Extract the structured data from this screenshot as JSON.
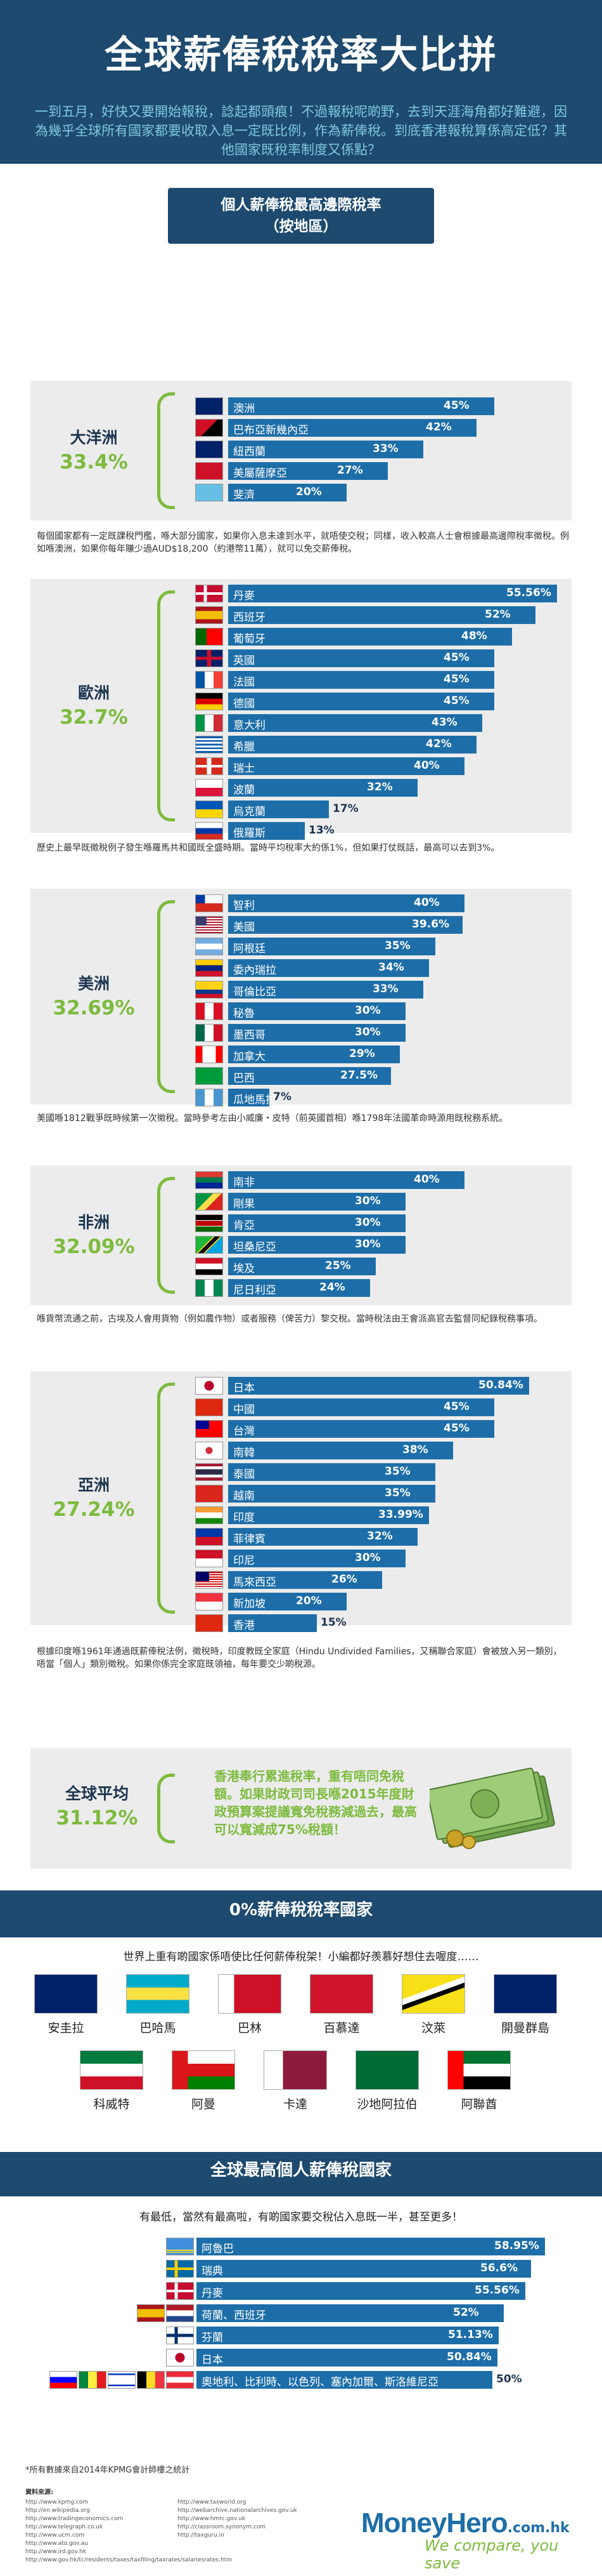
{
  "header": {
    "title": "全球薪俸稅稅率大比拼",
    "intro": "一到五月，好快又要開始報稅，諗起都頭痕！不過報稅呢啲野，去到天涯海角都好難避，因為幾乎全球所有國家都要收取入息一定既比例，作為薪俸稅。到底香港報稅算係高定低？其他國家既稅率制度又係點？"
  },
  "chart_section": {
    "title_line1": "個人薪俸稅最高邊際稅率",
    "title_line2": "（按地區）"
  },
  "colors": {
    "navy": "#1d4a6e",
    "bar": "#1d6ea8",
    "accent_green": "#7dbb3e",
    "panel": "#ececec"
  },
  "regions": [
    {
      "name": "大洋洲",
      "avg": "33.4%",
      "note": "每個國家都有一定既課稅門檻，喺大部分國家，如果你入息未達到水平，就唔使交稅；同樣，收入較高人士會根據最高邊際稅率徵稅。例如喺澳洲，如果你每年賺少過AUD$18,200（約港幣11萬），就可以免交薪俸稅。",
      "countries": [
        {
          "name": "澳洲",
          "rate": 45,
          "label": "45%",
          "flag": "australia"
        },
        {
          "name": "巴布亞新幾內亞",
          "rate": 42,
          "label": "42%",
          "flag": "png"
        },
        {
          "name": "紐西蘭",
          "rate": 33,
          "label": "33%",
          "flag": "nz"
        },
        {
          "name": "美屬薩摩亞",
          "rate": 27,
          "label": "27%",
          "flag": "samoa"
        },
        {
          "name": "斐濟",
          "rate": 20,
          "label": "20%",
          "flag": "fiji"
        }
      ]
    },
    {
      "name": "歐洲",
      "avg": "32.7%",
      "note": "歷史上最早既徵稅例子發生喺羅馬共和國既全盛時期。當時平均稅率大約係1%，但如果打仗既話，最高可以去到3%。",
      "countries": [
        {
          "name": "丹麥",
          "rate": 55.56,
          "label": "55.56%",
          "flag": "denmark"
        },
        {
          "name": "西班牙",
          "rate": 52,
          "label": "52%",
          "flag": "spain"
        },
        {
          "name": "葡萄牙",
          "rate": 48,
          "label": "48%",
          "flag": "portugal"
        },
        {
          "name": "英國",
          "rate": 45,
          "label": "45%",
          "flag": "uk"
        },
        {
          "name": "法國",
          "rate": 45,
          "label": "45%",
          "flag": "france"
        },
        {
          "name": "德國",
          "rate": 45,
          "label": "45%",
          "flag": "germany"
        },
        {
          "name": "意大利",
          "rate": 43,
          "label": "43%",
          "flag": "italy"
        },
        {
          "name": "希臘",
          "rate": 42,
          "label": "42%",
          "flag": "greece"
        },
        {
          "name": "瑞士",
          "rate": 40,
          "label": "40%",
          "flag": "swiss"
        },
        {
          "name": "波蘭",
          "rate": 32,
          "label": "32%",
          "flag": "poland"
        },
        {
          "name": "烏克蘭",
          "rate": 17,
          "label": "17%",
          "flag": "ukraine"
        },
        {
          "name": "俄羅斯",
          "rate": 13,
          "label": "13%",
          "flag": "russia"
        }
      ]
    },
    {
      "name": "美洲",
      "avg": "32.69%",
      "note": "美國喺1812戰爭既時候第一次徵稅。當時參考左由小威廉・皮特（前英國首相）喺1798年法國革命時源用既稅務系統。",
      "countries": [
        {
          "name": "智利",
          "rate": 40,
          "label": "40%",
          "flag": "chile"
        },
        {
          "name": "美國",
          "rate": 39.6,
          "label": "39.6%",
          "flag": "usa"
        },
        {
          "name": "阿根廷",
          "rate": 35,
          "label": "35%",
          "flag": "argentina"
        },
        {
          "name": "委內瑞拉",
          "rate": 34,
          "label": "34%",
          "flag": "venezuela"
        },
        {
          "name": "哥倫比亞",
          "rate": 33,
          "label": "33%",
          "flag": "colombia"
        },
        {
          "name": "秘魯",
          "rate": 30,
          "label": "30%",
          "flag": "peru"
        },
        {
          "name": "墨西哥",
          "rate": 30,
          "label": "30%",
          "flag": "mexico"
        },
        {
          "name": "加拿大",
          "rate": 29,
          "label": "29%",
          "flag": "canada"
        },
        {
          "name": "巴西",
          "rate": 27.5,
          "label": "27.5%",
          "flag": "brazil"
        },
        {
          "name": "瓜地馬拉",
          "rate": 7,
          "label": "7%",
          "flag": "guatemala"
        }
      ]
    },
    {
      "name": "非洲",
      "avg": "32.09%",
      "note": "喺貨幣流通之前，古埃及人會用貨物（例如農作物）或者服務（俾苦力）黎交稅。當時稅法由王會派高官去監督同紀錄稅務事項。",
      "countries": [
        {
          "name": "南非",
          "rate": 40,
          "label": "40%",
          "flag": "southafrica"
        },
        {
          "name": "剛果",
          "rate": 30,
          "label": "30%",
          "flag": "congo"
        },
        {
          "name": "肯亞",
          "rate": 30,
          "label": "30%",
          "flag": "kenya"
        },
        {
          "name": "坦桑尼亞",
          "rate": 30,
          "label": "30%",
          "flag": "tanzania"
        },
        {
          "name": "埃及",
          "rate": 25,
          "label": "25%",
          "flag": "egypt"
        },
        {
          "name": "尼日利亞",
          "rate": 24,
          "label": "24%",
          "flag": "nigeria"
        }
      ]
    },
    {
      "name": "亞洲",
      "avg": "27.24%",
      "note": "根據印度喺1961年通過既薪俸稅法例，徵稅時，印度教既全家庭（Hindu Undivided Families，又稱聯合家庭）會被放入另一類別，唔當「個人」類別徵稅。如果你係完全家庭既領袖，每年要交少啲稅源。",
      "countries": [
        {
          "name": "日本",
          "rate": 50.84,
          "label": "50.84%",
          "flag": "japan"
        },
        {
          "name": "中國",
          "rate": 45,
          "label": "45%",
          "flag": "china"
        },
        {
          "name": "台灣",
          "rate": 45,
          "label": "45%",
          "flag": "taiwan"
        },
        {
          "name": "南韓",
          "rate": 38,
          "label": "38%",
          "flag": "korea"
        },
        {
          "name": "泰國",
          "rate": 35,
          "label": "35%",
          "flag": "thailand"
        },
        {
          "name": "越南",
          "rate": 35,
          "label": "35%",
          "flag": "vietnam"
        },
        {
          "name": "印度",
          "rate": 33.99,
          "label": "33.99%",
          "flag": "india"
        },
        {
          "name": "菲律賓",
          "rate": 32,
          "label": "32%",
          "flag": "philippines"
        },
        {
          "name": "印尼",
          "rate": 30,
          "label": "30%",
          "flag": "indonesia"
        },
        {
          "name": "馬來西亞",
          "rate": 26,
          "label": "26%",
          "flag": "malaysia"
        },
        {
          "name": "新加坡",
          "rate": 20,
          "label": "20%",
          "flag": "singapore"
        },
        {
          "name": "香港",
          "rate": 15,
          "label": "15%",
          "flag": "hongkong"
        }
      ]
    }
  ],
  "global_average": {
    "label": "全球平均",
    "value": "31.12%",
    "text": "香港奉行累進稅率，重有唔同免稅額。如果財政司司長喺2015年度財政預算案提議寬免稅務減過去，最高可以寬減成75%稅額！"
  },
  "zero_tax": {
    "title": "0%薪俸稅稅率國家",
    "subtitle": "世界上重有啲國家係唔使比任何薪俸稅架！小編都好羨慕好想住去喔度……",
    "countries": [
      {
        "name": "安圭拉",
        "flag": "anguilla"
      },
      {
        "name": "巴哈馬",
        "flag": "bahamas"
      },
      {
        "name": "巴林",
        "flag": "bahrain"
      },
      {
        "name": "百慕達",
        "flag": "bermuda"
      },
      {
        "name": "汶萊",
        "flag": "brunei"
      },
      {
        "name": "開曼群島",
        "flag": "cayman"
      },
      {
        "name": "科威特",
        "flag": "kuwait"
      },
      {
        "name": "阿曼",
        "flag": "oman"
      },
      {
        "name": "卡達",
        "flag": "qatar"
      },
      {
        "name": "沙地阿拉伯",
        "flag": "saudi"
      },
      {
        "name": "阿聯酋",
        "flag": "uae"
      }
    ]
  },
  "top_countries": {
    "title": "全球最高個人薪俸稅國家",
    "subtitle": "有最低，當然有最高啦，有啲國家要交稅佔入息既一半，甚至更多！",
    "rows": [
      {
        "name": "阿魯巴",
        "rate": 58.95,
        "label": "58.95%",
        "flags": [
          "aruba"
        ]
      },
      {
        "name": "瑞典",
        "rate": 56.6,
        "label": "56.6%",
        "flags": [
          "sweden"
        ]
      },
      {
        "name": "丹麥",
        "rate": 55.56,
        "label": "55.56%",
        "flags": [
          "denmark"
        ]
      },
      {
        "name": "荷蘭、西班牙",
        "rate": 52,
        "label": "52%",
        "flags": [
          "netherlands",
          "spain"
        ]
      },
      {
        "name": "芬蘭",
        "rate": 51.13,
        "label": "51.13%",
        "flags": [
          "finland"
        ]
      },
      {
        "name": "日本",
        "rate": 50.84,
        "label": "50.84%",
        "flags": [
          "japan"
        ]
      },
      {
        "name": "奧地利、比利時、以色列、塞內加爾、斯洛維尼亞",
        "rate": 50,
        "label": "50%",
        "flags": [
          "austria",
          "belgium",
          "israel",
          "senegal",
          "slovenia"
        ]
      }
    ]
  },
  "footer": {
    "source_note": "*所有數據來自2014年KPMG會計師樓之統計",
    "sources_title": "資料來源:",
    "sources_left": [
      "http://www.kpmg.com",
      "http://en.wikipedia.org",
      "http://www.tradingeconomics.com",
      "http://www.telegraph.co.uk",
      "http://www.ucm.com",
      "http://www.ato.gov.au",
      "http://www.ird.gov.hk",
      "http://www.gov.hk/tc/residents/taxes/taxfiling/taxrates/salariesrates.htm"
    ],
    "sources_right": [
      "http://www.taxworld.org",
      "http://webarchive.nationalarchives.gov.uk",
      "http://www.hmrc.gov.uk",
      "http://classroom.synonym.com",
      "http://taxguru.in"
    ],
    "logo_main": "MoneyHero",
    "logo_tld": ".com.hk",
    "tagline": "We compare, you save"
  }
}
